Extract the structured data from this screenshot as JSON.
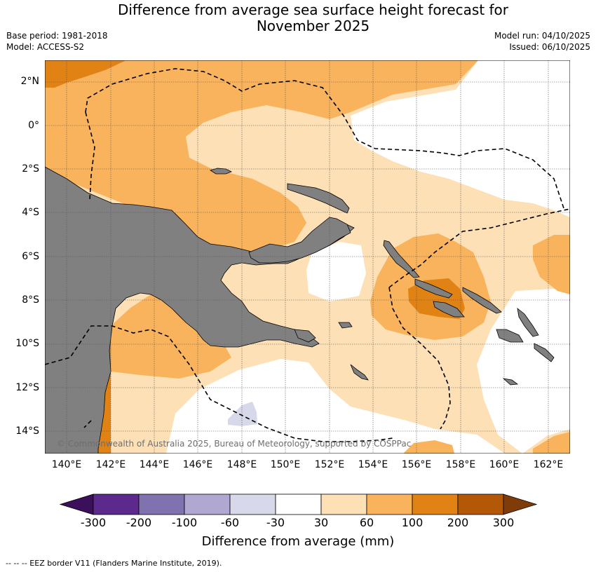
{
  "title": {
    "line1": "Difference from average sea surface height forecast for",
    "line2": "November 2025"
  },
  "meta": {
    "base_period": "Base period: 1981-2018",
    "model": "Model: ACCESS-S2",
    "model_run": "Model run: 04/10/2025",
    "issued": "Issued: 06/10/2025"
  },
  "map": {
    "lat_labels": [
      "2°N",
      "0°",
      "2°S",
      "4°S",
      "6°S",
      "8°S",
      "10°S",
      "12°S",
      "14°S"
    ],
    "lon_labels": [
      "140°E",
      "142°E",
      "144°E",
      "146°E",
      "148°E",
      "150°E",
      "152°E",
      "154°E",
      "156°E",
      "158°E",
      "160°E",
      "162°E"
    ],
    "copyright": "© Commonwealth of Australia 2025, Bureau of Meteorology, supported by COSPPac",
    "land_color": "#808080",
    "eez_line_color": "#000000"
  },
  "colorbar": {
    "ticks": [
      "-300",
      "-200",
      "-100",
      "-60",
      "-30",
      "30",
      "60",
      "100",
      "200",
      "300"
    ],
    "colors": [
      "#3c0f5c",
      "#5b2a8c",
      "#8072ae",
      "#b1a8d2",
      "#d7d8e9",
      "#ffffff",
      "#fde0b5",
      "#f9b35d",
      "#e08214",
      "#b35806",
      "#7f3b08"
    ],
    "label": "Difference from average (mm)"
  },
  "footnote": "--  --  -- EEZ border V11 (Flanders Marine Institute, 2019)."
}
